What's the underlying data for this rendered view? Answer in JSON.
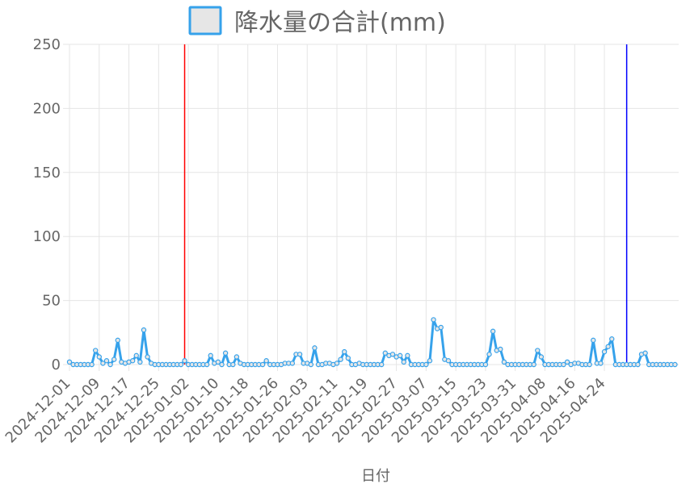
{
  "legend": {
    "label": "降水量の合計(mm)",
    "swatch_fill": "#e6e6e6",
    "swatch_border": "#36a2eb"
  },
  "colors": {
    "series": "#36a2eb",
    "marker_red": "#ff0000",
    "marker_blue": "#0000ff",
    "grid": "#e5e5e5",
    "text": "#666666"
  },
  "chart_data": {
    "type": "line",
    "title": "",
    "xlabel": "日付",
    "ylabel": "",
    "ylim": [
      0,
      250
    ],
    "yticks": [
      0,
      50,
      100,
      150,
      200,
      250
    ],
    "grid": true,
    "legend_position": "top",
    "start_date": "2024-12-01",
    "xtick_labels": [
      "2024-12-01",
      "2024-12-09",
      "2024-12-17",
      "2024-12-25",
      "2025-01-02",
      "2025-01-10",
      "2025-01-18",
      "2025-01-26",
      "2025-02-03",
      "2025-02-11",
      "2025-02-19",
      "2025-02-27",
      "2025-03-07",
      "2025-03-15",
      "2025-03-23",
      "2025-03-31",
      "2025-04-08",
      "2025-04-16",
      "2025-04-24"
    ],
    "series": [
      {
        "name": "降水量の合計(mm)",
        "values": [
          2,
          0,
          0,
          0,
          0,
          0,
          0,
          11,
          6,
          1,
          3,
          0,
          4,
          19,
          2,
          1,
          2,
          3,
          7,
          2,
          27,
          6,
          1,
          0,
          0,
          0,
          0,
          0,
          0,
          0,
          0,
          3,
          0,
          0,
          0,
          0,
          0,
          0,
          7,
          1,
          2,
          0,
          9,
          0,
          0,
          6,
          1,
          0,
          0,
          0,
          0,
          0,
          0,
          3,
          0,
          0,
          0,
          0,
          1,
          1,
          1,
          8,
          8,
          1,
          1,
          0,
          13,
          0,
          0,
          1,
          1,
          0,
          1,
          4,
          10,
          5,
          0,
          0,
          1,
          0,
          0,
          0,
          0,
          0,
          0,
          9,
          7,
          8,
          6,
          7,
          2,
          7,
          0,
          0,
          0,
          0,
          0,
          3,
          35,
          28,
          29,
          4,
          3,
          0,
          0,
          0,
          0,
          0,
          0,
          0,
          0,
          0,
          0,
          8,
          26,
          11,
          12,
          2,
          0,
          0,
          0,
          0,
          0,
          0,
          0,
          0,
          11,
          6,
          0,
          0,
          0,
          0,
          0,
          0,
          2,
          0,
          1,
          1,
          0,
          0,
          0,
          19,
          1,
          1,
          10,
          14,
          20,
          0,
          0,
          0,
          0,
          0,
          0,
          0,
          8,
          9,
          0,
          0,
          0,
          0,
          0,
          0,
          0,
          0
        ]
      }
    ],
    "vertical_lines": [
      {
        "date": "2025-01-01",
        "color": "#ff0000"
      },
      {
        "date": "2025-04-30",
        "color": "#0000ff"
      }
    ]
  }
}
